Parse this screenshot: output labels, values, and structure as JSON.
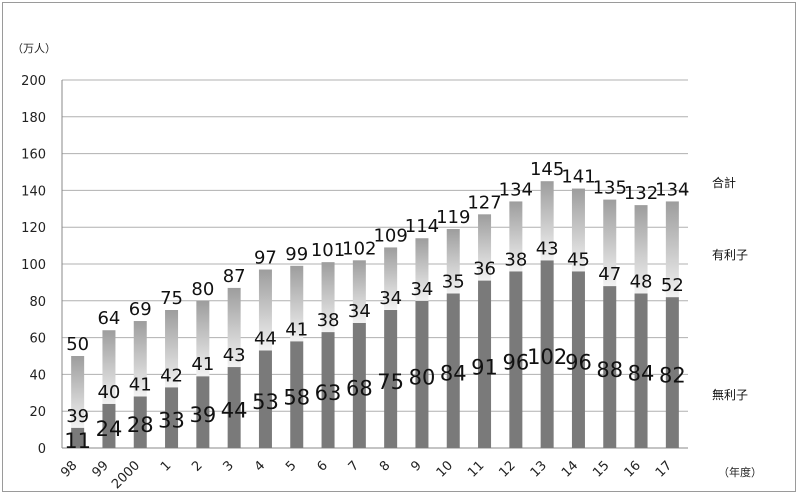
{
  "chart_data": {
    "type": "bar",
    "stacked": true,
    "y_unit": "（万人）",
    "x_unit": "（年度）",
    "categories": [
      "98",
      "99",
      "2000",
      "1",
      "2",
      "3",
      "4",
      "5",
      "6",
      "7",
      "8",
      "9",
      "10",
      "11",
      "12",
      "13",
      "14",
      "15",
      "16",
      "17"
    ],
    "series": [
      {
        "name": "無利子",
        "values": [
          11,
          24,
          28,
          33,
          39,
          44,
          53,
          58,
          63,
          68,
          75,
          80,
          84,
          91,
          96,
          102,
          96,
          88,
          84,
          82
        ],
        "color": "#7a7a7a"
      },
      {
        "name": "有利子",
        "values": [
          39,
          40,
          41,
          42,
          41,
          43,
          44,
          41,
          38,
          34,
          34,
          34,
          35,
          36,
          38,
          43,
          45,
          47,
          48,
          52
        ],
        "color": "#e6e6e6"
      }
    ],
    "totals_label": "合計",
    "totals": [
      50,
      64,
      69,
      75,
      80,
      87,
      97,
      99,
      101,
      102,
      109,
      114,
      119,
      127,
      134,
      145,
      141,
      135,
      132,
      134
    ],
    "ylim": [
      0,
      200
    ],
    "yticks": [
      0,
      20,
      40,
      60,
      80,
      100,
      120,
      140,
      160,
      180,
      200
    ],
    "grid": true,
    "legend": "right"
  }
}
